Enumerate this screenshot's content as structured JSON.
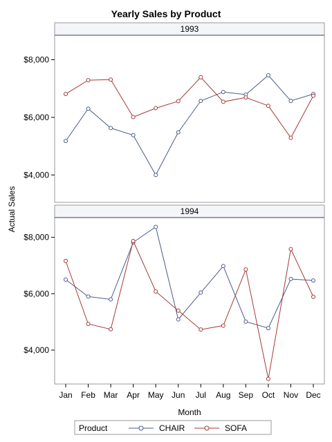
{
  "chart_data": {
    "type": "line",
    "title": "Yearly Sales by Product",
    "xlabel": "Month",
    "ylabel": "Actual Sales",
    "categories": [
      "Jan",
      "Feb",
      "Mar",
      "Apr",
      "May",
      "Jun",
      "Jul",
      "Aug",
      "Sep",
      "Oct",
      "Nov",
      "Dec"
    ],
    "y_ticks": [
      "$4,000",
      "$6,000",
      "$8,000"
    ],
    "y_tick_values": [
      4000,
      6000,
      8000
    ],
    "grid": false,
    "legend": {
      "title": "Product",
      "placement": "bottom"
    },
    "panels": [
      {
        "label": "1993",
        "ylim": [
          3050,
          8850
        ],
        "series": [
          {
            "name": "CHAIR",
            "color": "#4a5a8c",
            "values": [
              5180,
              6300,
              5630,
              5380,
              4000,
              5480,
              6570,
              6880,
              6790,
              7460,
              6570,
              6810
            ]
          },
          {
            "name": "SOFA",
            "color": "#a33a35",
            "values": [
              6810,
              7290,
              7310,
              6010,
              6320,
              6560,
              7390,
              6540,
              6690,
              6400,
              5290,
              6750
            ]
          }
        ]
      },
      {
        "label": "1994",
        "ylim": [
          2800,
          8700
        ],
        "series": [
          {
            "name": "CHAIR",
            "color": "#4a5a8c",
            "values": [
              6500,
              5900,
              5800,
              7820,
              8370,
              5090,
              6040,
              6980,
              5010,
              4780,
              6520,
              6470
            ]
          },
          {
            "name": "SOFA",
            "color": "#a33a35",
            "values": [
              7160,
              4930,
              4740,
              7870,
              6080,
              5400,
              4730,
              4870,
              6860,
              2980,
              7580,
              5890
            ]
          }
        ]
      }
    ]
  }
}
